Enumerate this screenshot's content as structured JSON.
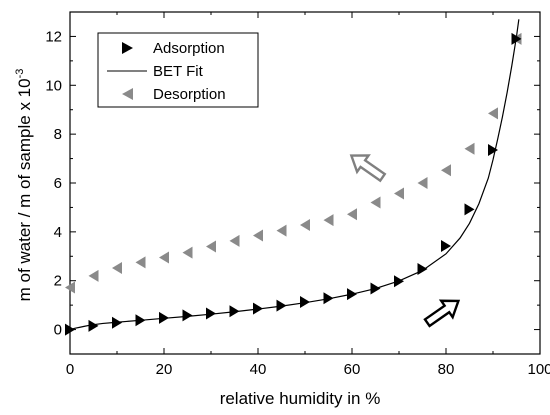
{
  "chart_data": {
    "type": "scatter",
    "xlabel": "relative humidity in %",
    "ylabel": "m of water / m of sample  x 10",
    "ylabel_exponent": "-3",
    "xlim": [
      0,
      100
    ],
    "ylim": [
      -1,
      13
    ],
    "x_ticks": [
      0,
      20,
      40,
      60,
      80,
      100
    ],
    "y_ticks": [
      0,
      2,
      4,
      6,
      8,
      10,
      12
    ],
    "x_tick_labels": [
      "0",
      "20",
      "40",
      "60",
      "80",
      "100"
    ],
    "y_tick_labels": [
      "0",
      "2",
      "4",
      "6",
      "8",
      "10",
      "12"
    ],
    "grid": false,
    "legend_position": "top-left",
    "series": [
      {
        "name": "Adsorption",
        "marker": "right-triangle",
        "color": "#000000",
        "points": [
          [
            0,
            0.0
          ],
          [
            5,
            0.15
          ],
          [
            10,
            0.28
          ],
          [
            15,
            0.38
          ],
          [
            20,
            0.48
          ],
          [
            25,
            0.58
          ],
          [
            30,
            0.66
          ],
          [
            35,
            0.75
          ],
          [
            40,
            0.86
          ],
          [
            45,
            0.98
          ],
          [
            50,
            1.13
          ],
          [
            55,
            1.28
          ],
          [
            60,
            1.45
          ],
          [
            65,
            1.68
          ],
          [
            70,
            1.98
          ],
          [
            75,
            2.48
          ],
          [
            80,
            3.42
          ],
          [
            85,
            4.92
          ],
          [
            90,
            7.35
          ],
          [
            95,
            11.9
          ]
        ]
      },
      {
        "name": "BET Fit",
        "line": true,
        "color": "#000000",
        "points": [
          [
            0,
            0.0
          ],
          [
            1,
            0.05
          ],
          [
            2,
            0.09
          ],
          [
            3,
            0.13
          ],
          [
            4,
            0.17
          ],
          [
            5,
            0.2
          ],
          [
            7,
            0.25
          ],
          [
            10,
            0.3
          ],
          [
            15,
            0.38
          ],
          [
            20,
            0.46
          ],
          [
            25,
            0.54
          ],
          [
            30,
            0.63
          ],
          [
            35,
            0.73
          ],
          [
            40,
            0.84
          ],
          [
            45,
            0.96
          ],
          [
            50,
            1.1
          ],
          [
            55,
            1.26
          ],
          [
            60,
            1.45
          ],
          [
            65,
            1.68
          ],
          [
            70,
            1.99
          ],
          [
            75,
            2.42
          ],
          [
            80,
            3.1
          ],
          [
            83,
            3.75
          ],
          [
            85,
            4.35
          ],
          [
            87,
            5.15
          ],
          [
            89,
            6.2
          ],
          [
            90,
            6.95
          ],
          [
            91,
            7.8
          ],
          [
            92,
            8.7
          ],
          [
            93,
            9.7
          ],
          [
            94,
            10.8
          ],
          [
            95,
            12.0
          ],
          [
            95.5,
            12.7
          ]
        ]
      },
      {
        "name": "Desorption",
        "marker": "left-triangle",
        "color": "#8a8a8a",
        "points": [
          [
            0,
            1.72
          ],
          [
            5,
            2.2
          ],
          [
            10,
            2.52
          ],
          [
            15,
            2.75
          ],
          [
            20,
            2.95
          ],
          [
            25,
            3.15
          ],
          [
            30,
            3.4
          ],
          [
            35,
            3.63
          ],
          [
            40,
            3.85
          ],
          [
            45,
            4.05
          ],
          [
            50,
            4.28
          ],
          [
            55,
            4.48
          ],
          [
            60,
            4.72
          ],
          [
            65,
            5.2
          ],
          [
            70,
            5.57
          ],
          [
            75,
            6.0
          ],
          [
            80,
            6.52
          ],
          [
            85,
            7.4
          ],
          [
            90,
            8.85
          ],
          [
            95,
            11.9
          ]
        ]
      }
    ],
    "annotations": [
      {
        "type": "arrow",
        "direction": "up-left",
        "color": "#808080",
        "at": [
          63,
          6.7
        ]
      },
      {
        "type": "arrow",
        "direction": "up-right",
        "color": "#000000",
        "at": [
          79.5,
          0.75
        ]
      }
    ]
  }
}
